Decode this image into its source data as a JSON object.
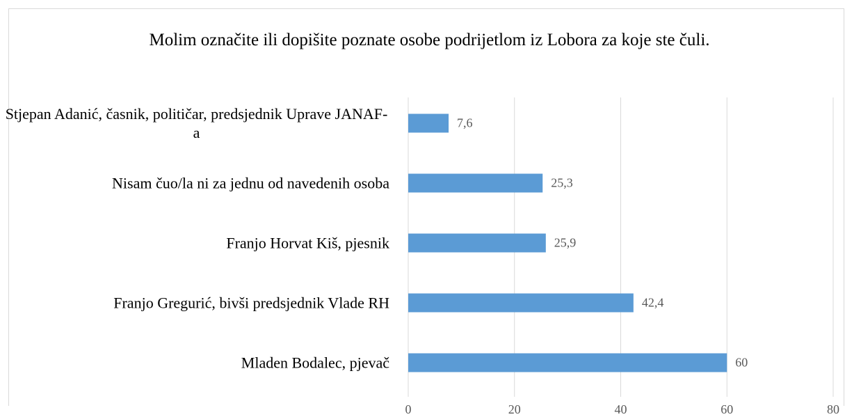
{
  "chart_data": {
    "type": "bar",
    "orientation": "horizontal",
    "title": "Molim označite ili dopišite poznate osobe podrijetlom iz Lobora za koje ste čuli.",
    "categories": [
      "Stjepan Adanić, časnik, političar, predsjednik Uprave JANAF-a",
      "Nisam čuo/la ni za jednu od navedenih osoba",
      "Franjo Horvat Kiš, pjesnik",
      "Franjo Gregurić, bivši predsjednik Vlade RH",
      "Mladen Bodalec, pjevač"
    ],
    "values": [
      7.6,
      25.3,
      25.9,
      42.4,
      60
    ],
    "value_labels": [
      "7,6",
      "25,3",
      "25,9",
      "42,4",
      "60"
    ],
    "color": "#5b9bd5",
    "xlim": [
      0,
      80
    ],
    "xticks": [
      0,
      20,
      40,
      60,
      80
    ],
    "grid": true
  }
}
